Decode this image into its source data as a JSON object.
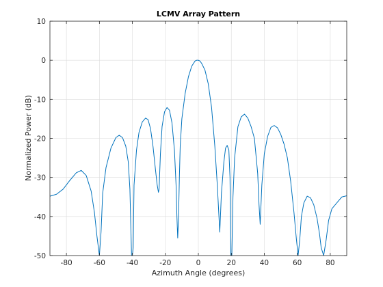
{
  "chart_data": {
    "type": "line",
    "title": "LCMV Array Pattern",
    "xlabel": "Azimuth Angle (degrees)",
    "ylabel": "Normalized Power (dB)",
    "xlim": [
      -90,
      90
    ],
    "ylim": [
      -50,
      10
    ],
    "xticks": [
      -80,
      -60,
      -40,
      -20,
      0,
      20,
      40,
      60,
      80
    ],
    "yticks": [
      -50,
      -40,
      -30,
      -20,
      -10,
      0,
      10
    ],
    "grid": true,
    "line_color": "#0072BD",
    "grid_color": "#dcdcdc",
    "series": [
      {
        "x": [
          -90,
          -86,
          -82,
          -78,
          -74,
          -71,
          -68,
          -65,
          -63,
          -61.5,
          -60,
          -59,
          -58,
          -56,
          -53,
          -50,
          -48,
          -46,
          -44,
          -42.5,
          -41.5,
          -40.5,
          -40,
          -39.5,
          -39,
          -37.5,
          -36,
          -34,
          -32,
          -30.5,
          -29,
          -27.5,
          -26,
          -25,
          -24.2,
          -23.8,
          -23,
          -22,
          -20.5,
          -19,
          -17.5,
          -16,
          -14.5,
          -13.5,
          -13,
          -12.5,
          -12,
          -11.5,
          -11,
          -10,
          -8,
          -6,
          -4,
          -2,
          -1,
          0,
          1,
          2,
          4,
          6,
          8,
          10,
          11.5,
          12.5,
          13,
          14,
          15.5,
          16.5,
          17.5,
          18.5,
          19.2,
          19.7,
          20.3,
          21,
          22,
          24,
          26,
          28,
          30,
          32,
          34,
          36,
          36.8,
          37.5,
          38.5,
          40,
          42,
          44,
          46,
          48,
          50,
          52,
          54,
          56,
          58,
          59.5,
          60.5,
          61.5,
          62.5,
          64,
          66,
          68,
          70,
          72,
          73.5,
          74.5,
          76,
          77.5,
          79,
          81,
          84,
          87,
          90
        ],
        "y": [
          -34.8,
          -34.3,
          -33.0,
          -30.8,
          -28.8,
          -28.2,
          -29.5,
          -33.5,
          -39,
          -45,
          -50,
          -44,
          -34,
          -27.5,
          -22.5,
          -19.8,
          -19.2,
          -19.8,
          -22,
          -26,
          -33,
          -50,
          -50,
          -48,
          -32,
          -23,
          -18.5,
          -15.8,
          -14.8,
          -15.2,
          -17.5,
          -22,
          -28,
          -31.8,
          -33.8,
          -33,
          -24,
          -17,
          -13.2,
          -12.1,
          -12.8,
          -16,
          -23,
          -32,
          -40,
          -45.5,
          -40,
          -30,
          -22,
          -15,
          -8.5,
          -4.2,
          -1.5,
          -0.2,
          0,
          0,
          -0.2,
          -0.8,
          -2.5,
          -6,
          -12,
          -22,
          -32,
          -40,
          -44,
          -34,
          -26,
          -22.5,
          -21.8,
          -23,
          -30,
          -50,
          -50,
          -35,
          -25,
          -17,
          -14.5,
          -13.8,
          -14.8,
          -17,
          -20,
          -29,
          -37,
          -42,
          -32,
          -24,
          -19.5,
          -17.2,
          -16.7,
          -17.3,
          -19,
          -21.5,
          -25,
          -31,
          -39,
          -46,
          -50,
          -46,
          -40,
          -36.5,
          -34.8,
          -35.2,
          -37,
          -40.5,
          -44.5,
          -48,
          -50,
          -46,
          -41,
          -38,
          -36.5,
          -35,
          -34.7
        ]
      }
    ]
  }
}
